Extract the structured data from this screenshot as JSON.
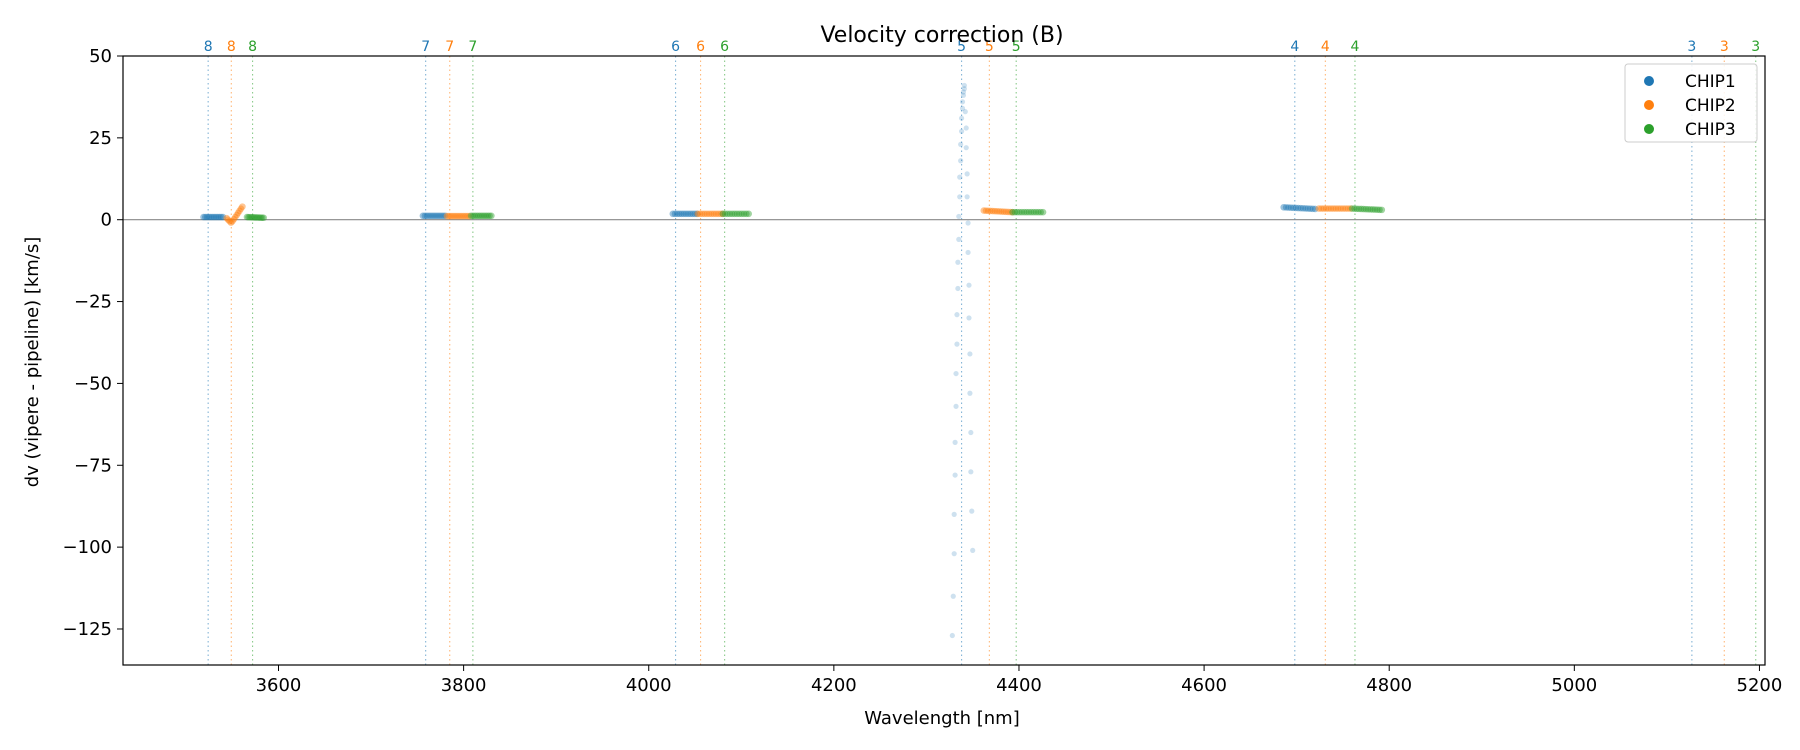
{
  "chart_data": {
    "type": "scatter",
    "title": "Velocity correction (B)",
    "xlabel": "Wavelength [nm]",
    "ylabel": "dv (vipere - pipeline) [km/s]",
    "xlim": [
      3432,
      5206
    ],
    "ylim": [
      -136,
      50
    ],
    "xticks": [
      3600,
      3800,
      4000,
      4200,
      4400,
      4600,
      4800,
      5000,
      5200
    ],
    "xtick_labels": [
      "3600",
      "3800",
      "4000",
      "4200",
      "4400",
      "4600",
      "4800",
      "5000",
      "5200"
    ],
    "yticks": [
      50,
      25,
      0,
      -25,
      -50,
      -75,
      -100,
      -125
    ],
    "ytick_labels": [
      "50",
      "25",
      "0",
      "−25",
      "−50",
      "−75",
      "−100",
      "−125"
    ],
    "zero_line": 0,
    "legend": {
      "placement": "top-right",
      "entries": [
        "CHIP1",
        "CHIP2",
        "CHIP3"
      ]
    },
    "colors": {
      "CHIP1": "#1f77b4",
      "CHIP2": "#ff7f0e",
      "CHIP3": "#2ca02c",
      "zero": "#888888"
    },
    "order_markers": [
      {
        "series": "CHIP1",
        "x": 3524,
        "label": "8"
      },
      {
        "series": "CHIP2",
        "x": 3549,
        "label": "8"
      },
      {
        "series": "CHIP3",
        "x": 3572,
        "label": "8"
      },
      {
        "series": "CHIP1",
        "x": 3759,
        "label": "7"
      },
      {
        "series": "CHIP2",
        "x": 3785,
        "label": "7"
      },
      {
        "series": "CHIP3",
        "x": 3810,
        "label": "7"
      },
      {
        "series": "CHIP1",
        "x": 4029,
        "label": "6"
      },
      {
        "series": "CHIP2",
        "x": 4056,
        "label": "6"
      },
      {
        "series": "CHIP3",
        "x": 4082,
        "label": "6"
      },
      {
        "series": "CHIP1",
        "x": 4338,
        "label": "5"
      },
      {
        "series": "CHIP2",
        "x": 4368,
        "label": "5"
      },
      {
        "series": "CHIP3",
        "x": 4397,
        "label": "5"
      },
      {
        "series": "CHIP1",
        "x": 4698,
        "label": "4"
      },
      {
        "series": "CHIP2",
        "x": 4731,
        "label": "4"
      },
      {
        "series": "CHIP3",
        "x": 4763,
        "label": "4"
      },
      {
        "series": "CHIP1",
        "x": 5127,
        "label": "3"
      },
      {
        "series": "CHIP2",
        "x": 5162,
        "label": "3"
      },
      {
        "series": "CHIP3",
        "x": 5196,
        "label": "3"
      }
    ],
    "series": [
      {
        "name": "CHIP1",
        "clusters": [
          {
            "x0": 3519,
            "x1": 3540,
            "y0": 0.8,
            "y1": 0.8,
            "n": 12
          },
          {
            "x0": 3756,
            "x1": 3780,
            "y0": 1.2,
            "y1": 1.2,
            "n": 12
          },
          {
            "x0": 4026,
            "x1": 4052,
            "y0": 1.8,
            "y1": 1.8,
            "n": 12
          },
          {
            "x0": 4686,
            "x1": 4720,
            "y0": 3.8,
            "y1": 3.3,
            "n": 14
          }
        ]
      },
      {
        "name": "CHIP2",
        "clusters": [
          {
            "x0": 3544,
            "x1": 3561,
            "y0": 2.5,
            "y1": 4.0,
            "n": 12,
            "dip": -1.0,
            "dip_x": 3549
          },
          {
            "x0": 3782,
            "x1": 3806,
            "y0": 1.1,
            "y1": 1.1,
            "n": 12
          },
          {
            "x0": 4053,
            "x1": 4080,
            "y0": 1.8,
            "y1": 1.8,
            "n": 12
          },
          {
            "x0": 4362,
            "x1": 4393,
            "y0": 2.8,
            "y1": 2.3,
            "n": 14
          },
          {
            "x0": 4724,
            "x1": 4758,
            "y0": 3.4,
            "y1": 3.4,
            "n": 14
          }
        ]
      },
      {
        "name": "CHIP3",
        "clusters": [
          {
            "x0": 3566,
            "x1": 3584,
            "y0": 0.8,
            "y1": 0.6,
            "n": 12
          },
          {
            "x0": 3808,
            "x1": 3830,
            "y0": 1.2,
            "y1": 1.2,
            "n": 12
          },
          {
            "x0": 4080,
            "x1": 4108,
            "y0": 1.8,
            "y1": 1.8,
            "n": 12
          },
          {
            "x0": 4393,
            "x1": 4426,
            "y0": 2.3,
            "y1": 2.3,
            "n": 14
          },
          {
            "x0": 4760,
            "x1": 4792,
            "y0": 3.4,
            "y1": 3.0,
            "n": 14
          }
        ]
      }
    ],
    "outliers_chip1_order5": [
      {
        "x": 4328,
        "y": -127
      },
      {
        "x": 4329,
        "y": -115
      },
      {
        "x": 4330,
        "y": -102
      },
      {
        "x": 4330,
        "y": -90
      },
      {
        "x": 4331,
        "y": -78
      },
      {
        "x": 4331,
        "y": -68
      },
      {
        "x": 4332,
        "y": -57
      },
      {
        "x": 4332,
        "y": -47
      },
      {
        "x": 4333,
        "y": -38
      },
      {
        "x": 4333,
        "y": -29
      },
      {
        "x": 4334,
        "y": -21
      },
      {
        "x": 4334,
        "y": -13
      },
      {
        "x": 4335,
        "y": -6
      },
      {
        "x": 4335,
        "y": 1
      },
      {
        "x": 4336,
        "y": 7
      },
      {
        "x": 4336,
        "y": 13
      },
      {
        "x": 4337,
        "y": 18
      },
      {
        "x": 4337,
        "y": 23
      },
      {
        "x": 4338,
        "y": 27
      },
      {
        "x": 4338,
        "y": 31
      },
      {
        "x": 4339,
        "y": 34
      },
      {
        "x": 4339,
        "y": 36
      },
      {
        "x": 4340,
        "y": 38
      },
      {
        "x": 4340,
        "y": 39
      },
      {
        "x": 4341,
        "y": 40
      },
      {
        "x": 4341,
        "y": 41
      },
      {
        "x": 4342,
        "y": 33
      },
      {
        "x": 4343,
        "y": 28
      },
      {
        "x": 4343,
        "y": 22
      },
      {
        "x": 4344,
        "y": 14
      },
      {
        "x": 4344,
        "y": 7
      },
      {
        "x": 4345,
        "y": -1
      },
      {
        "x": 4345,
        "y": -10
      },
      {
        "x": 4346,
        "y": -20
      },
      {
        "x": 4346,
        "y": -30
      },
      {
        "x": 4347,
        "y": -41
      },
      {
        "x": 4347,
        "y": -53
      },
      {
        "x": 4348,
        "y": -65
      },
      {
        "x": 4348,
        "y": -77
      },
      {
        "x": 4349,
        "y": -89
      },
      {
        "x": 4350,
        "y": -101
      }
    ]
  }
}
